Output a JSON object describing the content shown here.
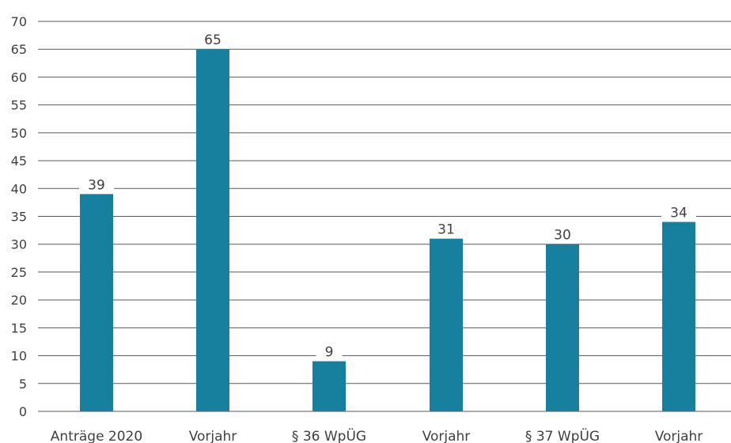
{
  "chart_data": {
    "type": "bar",
    "title": "",
    "xlabel": "",
    "ylabel": "",
    "categories": [
      "Anträge 2020",
      "Vorjahr",
      "§ 36 WpÜG",
      "Vorjahr",
      "§ 37 WpÜG",
      "Vorjahr"
    ],
    "values": [
      39,
      65,
      9,
      31,
      30,
      34
    ],
    "ylim": [
      0,
      70
    ],
    "yticks": [
      0,
      5,
      10,
      15,
      20,
      25,
      30,
      35,
      40,
      45,
      50,
      55,
      60,
      65,
      70
    ],
    "grid": true,
    "data_labels": true,
    "bar_color": "#17809f"
  }
}
